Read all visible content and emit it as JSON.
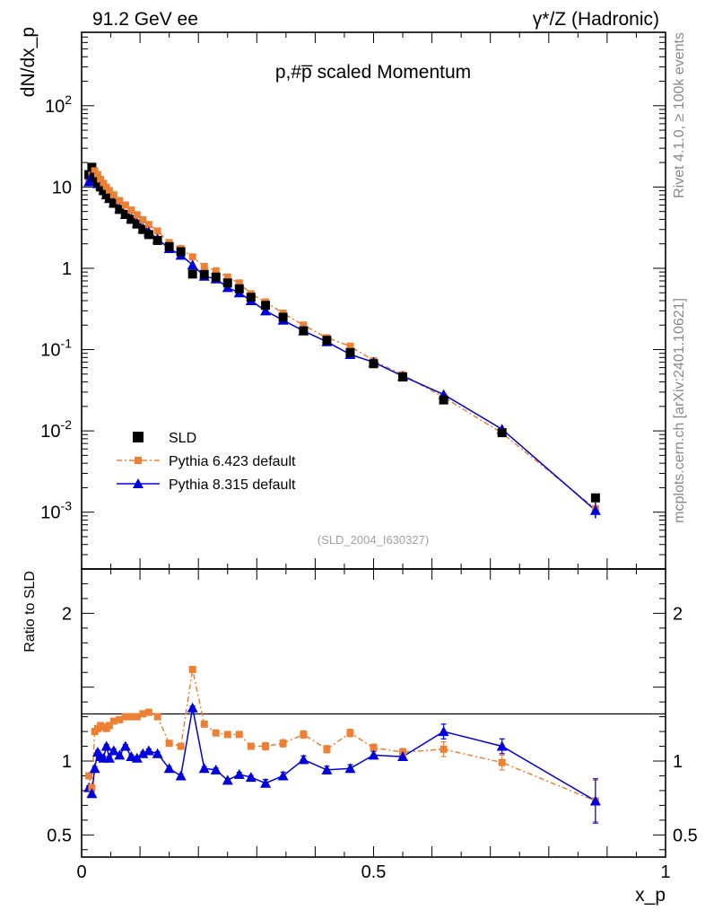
{
  "chart_data": {
    "type": "scatter",
    "header_left": "91.2 GeV ee",
    "header_right": "γ*/Z (Hadronic)",
    "title": "p,#p̅ scaled Momentum",
    "ylabel_main": "dN/dx_p",
    "ylabel_ratio": "Ratio to SLD",
    "xlabel": "x_p",
    "analysis_id": "(SLD_2004_I630327)",
    "side_text_top": "Rivet 4.1.0, ≥ 100k events",
    "side_text_bottom": "mcplots.cern.ch [arXiv:2401.10621]",
    "xlim": [
      0,
      1
    ],
    "ylim_main": [
      0.0002,
      800
    ],
    "ylim_ratio": [
      0.35,
      2.3
    ],
    "x_ticks": [
      "0",
      "0.5",
      "1"
    ],
    "y_ticks_main": [
      "10^-3",
      "10^-2",
      "10^-1",
      "1",
      "10",
      "10^2"
    ],
    "y_ticks_ratio": [
      "0.5",
      "1",
      "2"
    ],
    "legend": [
      "SLD",
      "Pythia 6.423 default",
      "Pythia 8.315 default"
    ],
    "colors": {
      "data": "#000000",
      "py6": "#ee8033",
      "py8": "#0000dd"
    },
    "x": [
      0.0125,
      0.0175,
      0.0225,
      0.0275,
      0.0325,
      0.0375,
      0.0425,
      0.0475,
      0.055,
      0.065,
      0.075,
      0.085,
      0.095,
      0.105,
      0.115,
      0.13,
      0.15,
      0.17,
      0.19,
      0.21,
      0.23,
      0.25,
      0.27,
      0.29,
      0.315,
      0.345,
      0.38,
      0.42,
      0.46,
      0.5,
      0.55,
      0.62,
      0.72,
      0.88
    ],
    "series": [
      {
        "name": "SLD",
        "values": [
          14.2,
          17.5,
          13.2,
          11.6,
          10.0,
          9.0,
          8.1,
          7.3,
          6.3,
          5.3,
          4.6,
          4.0,
          3.5,
          3.0,
          2.6,
          2.2,
          1.85,
          1.6,
          0.85,
          0.84,
          0.78,
          0.66,
          0.56,
          0.44,
          0.35,
          0.25,
          0.17,
          0.13,
          0.092,
          0.067,
          0.046,
          0.024,
          0.0095,
          0.0015
        ]
      },
      {
        "name": "Pythia 6.423 default",
        "values": [
          12.8,
          14.3,
          15.8,
          14.2,
          12.4,
          11.1,
          9.9,
          9.0,
          8.0,
          6.8,
          6.0,
          5.2,
          4.55,
          3.95,
          3.45,
          2.87,
          2.07,
          1.75,
          1.38,
          1.05,
          0.93,
          0.78,
          0.66,
          0.485,
          0.385,
          0.28,
          0.2,
          0.14,
          0.11,
          0.073,
          0.049,
          0.026,
          0.0094,
          0.0011
        ],
        "ratio": [
          0.9,
          0.82,
          1.2,
          1.22,
          1.24,
          1.23,
          1.22,
          1.24,
          1.27,
          1.28,
          1.3,
          1.3,
          1.3,
          1.32,
          1.33,
          1.3,
          1.12,
          1.1,
          1.62,
          1.25,
          1.19,
          1.18,
          1.18,
          1.1,
          1.1,
          1.12,
          1.18,
          1.08,
          1.19,
          1.09,
          1.06,
          1.08,
          0.99,
          0.73
        ]
      },
      {
        "name": "Pythia 8.315 default",
        "values": [
          11.6,
          14.0,
          12.5,
          11.0,
          10.4,
          9.2,
          8.0,
          7.2,
          6.4,
          5.4,
          4.6,
          4.1,
          3.6,
          3.1,
          2.8,
          2.3,
          1.75,
          1.45,
          1.1,
          0.8,
          0.74,
          0.58,
          0.5,
          0.4,
          0.3,
          0.23,
          0.17,
          0.125,
          0.087,
          0.07,
          0.047,
          0.028,
          0.0105,
          0.00105
        ],
        "ratio": [
          0.82,
          0.78,
          0.95,
          1.06,
          1.03,
          1.02,
          1.1,
          1.02,
          1.07,
          1.04,
          1.1,
          1.03,
          1.02,
          1.05,
          1.07,
          1.05,
          0.95,
          0.9,
          1.36,
          0.95,
          0.94,
          0.87,
          0.91,
          0.89,
          0.85,
          0.9,
          1.01,
          0.94,
          0.95,
          1.04,
          1.03,
          1.2,
          1.1,
          0.73
        ]
      }
    ]
  }
}
